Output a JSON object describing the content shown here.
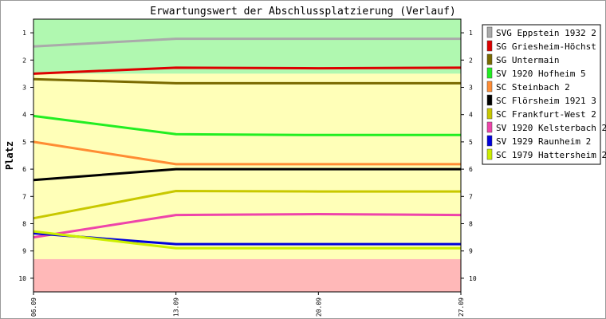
{
  "chart_data": {
    "type": "line",
    "title": "Erwartungswert der Abschlussplatzierung (Verlauf)",
    "ylabel": "Platz",
    "xlabel": "",
    "x": [
      "06.09",
      "13.09",
      "20.09",
      "27.09"
    ],
    "ylim": [
      0.5,
      10.5
    ],
    "y_inverted": true,
    "yticks": [
      1,
      2,
      3,
      4,
      5,
      6,
      7,
      8,
      9,
      10
    ],
    "background_bands": [
      {
        "from": 0.5,
        "to": 2.5,
        "color": "#b0f8b0"
      },
      {
        "from": 2.5,
        "to": 9.3,
        "color": "#ffffb8"
      },
      {
        "from": 9.3,
        "to": 10.5,
        "color": "#ffb8b8"
      }
    ],
    "legend_placement": "right",
    "series": [
      {
        "name": "SVG Eppstein 1932 2",
        "color": "#aaaaaa",
        "values": [
          1.5,
          1.22,
          1.22,
          1.22
        ]
      },
      {
        "name": "SG Griesheim-Höchst",
        "color": "#dd0000",
        "values": [
          2.5,
          2.28,
          2.3,
          2.28
        ]
      },
      {
        "name": "SG Untermain",
        "color": "#7a6a00",
        "values": [
          2.7,
          2.85,
          2.85,
          2.85
        ]
      },
      {
        "name": "SV 1920 Hofheim 5",
        "color": "#22ee22",
        "values": [
          4.05,
          4.72,
          4.75,
          4.75
        ]
      },
      {
        "name": "SC Steinbach 2",
        "color": "#ff8c33",
        "values": [
          5.0,
          5.82,
          5.82,
          5.82
        ]
      },
      {
        "name": "SC Flörsheim 1921 3",
        "color": "#000000",
        "values": [
          6.4,
          6.0,
          6.0,
          6.0
        ]
      },
      {
        "name": "SC Frankfurt-West 2",
        "color": "#c8c800",
        "values": [
          7.8,
          6.8,
          6.82,
          6.82
        ]
      },
      {
        "name": "SV 1920 Kelsterbach 2",
        "color": "#ee44aa",
        "values": [
          8.5,
          7.68,
          7.65,
          7.68
        ]
      },
      {
        "name": "SV 1929 Raunheim 2",
        "color": "#0000dd",
        "values": [
          8.35,
          8.75,
          8.75,
          8.75
        ]
      },
      {
        "name": "SC 1979 Hattersheim 2",
        "color": "#ccee00",
        "values": [
          8.28,
          8.9,
          8.9,
          8.9
        ]
      }
    ]
  }
}
